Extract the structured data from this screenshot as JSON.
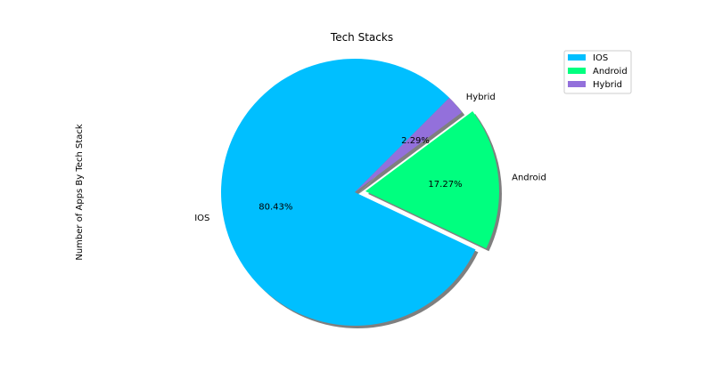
{
  "chart_data": {
    "type": "pie",
    "title": "Tech Stacks",
    "ylabel": "Number of Apps By Tech Stack",
    "slices": [
      {
        "label": "IOS",
        "value": 80.43,
        "pct_label": "80.43%",
        "color": "#00bfff"
      },
      {
        "label": "Android",
        "value": 17.27,
        "pct_label": "17.27%",
        "color": "#00ff7f"
      },
      {
        "label": "Hybrid",
        "value": 2.29,
        "pct_label": "2.29%",
        "color": "#9370db"
      }
    ],
    "start_angle_deg": 45,
    "exploded": [
      "Android"
    ],
    "shadow": true,
    "legend": {
      "placement": "top-right",
      "entries": [
        "IOS",
        "Android",
        "Hybrid"
      ]
    }
  }
}
